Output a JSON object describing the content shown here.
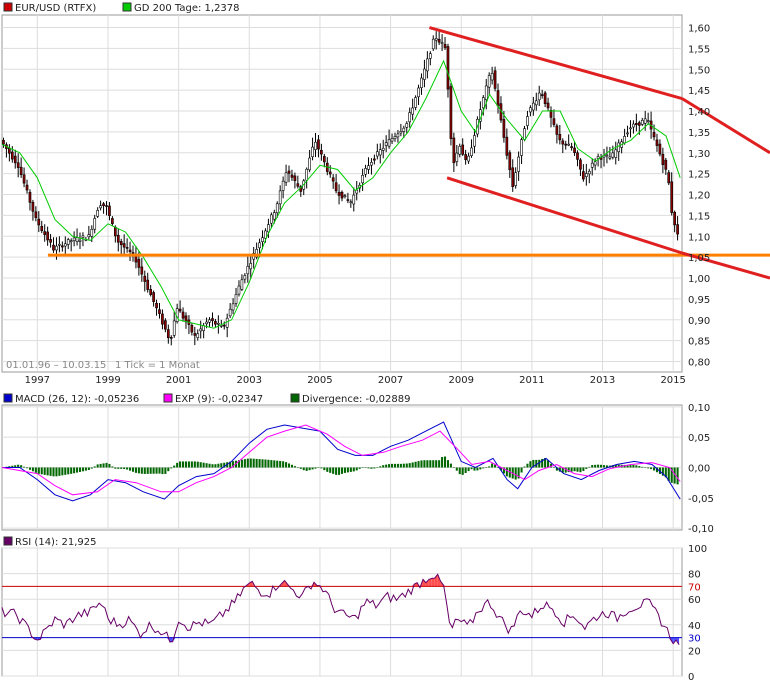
{
  "chart_data": [
    {
      "type": "candlestick",
      "title": "EUR/USD (RTFX)",
      "legend": [
        {
          "label": "EUR/USD (RTFX)",
          "color": "#cc0000"
        },
        {
          "label": "GD 200 Tage: 1,2378",
          "color": "#00cc00"
        }
      ],
      "range_note": "01.01.96 – 10.03.15",
      "tick_note": "1 Tick = 1 Monat",
      "x_ticks": [
        "1997",
        "1999",
        "2001",
        "2003",
        "2005",
        "2007",
        "2009",
        "2011",
        "2013",
        "2015"
      ],
      "x_range": [
        1996.0,
        2015.25
      ],
      "y_ticks": [
        "1,60",
        "1,55",
        "1,50",
        "1,45",
        "1,40",
        "1,35",
        "1,30",
        "1,25",
        "1,20",
        "1,15",
        "1,10",
        "1,05",
        "1,00",
        "0,95",
        "0,90",
        "0,85",
        "0,80"
      ],
      "ylim": [
        0.775,
        1.63
      ],
      "price_path": [
        [
          1996.0,
          1.33
        ],
        [
          1996.5,
          1.27
        ],
        [
          1997.0,
          1.14
        ],
        [
          1997.5,
          1.07
        ],
        [
          1998.0,
          1.09
        ],
        [
          1998.5,
          1.1
        ],
        [
          1998.8,
          1.18
        ],
        [
          1999.0,
          1.17
        ],
        [
          1999.3,
          1.09
        ],
        [
          1999.8,
          1.05
        ],
        [
          2000.3,
          0.95
        ],
        [
          2000.8,
          0.85
        ],
        [
          2001.0,
          0.93
        ],
        [
          2001.5,
          0.86
        ],
        [
          2001.9,
          0.9
        ],
        [
          2002.3,
          0.88
        ],
        [
          2002.8,
          0.99
        ],
        [
          2003.3,
          1.08
        ],
        [
          2003.8,
          1.17
        ],
        [
          2004.1,
          1.26
        ],
        [
          2004.5,
          1.21
        ],
        [
          2004.9,
          1.33
        ],
        [
          2005.5,
          1.21
        ],
        [
          2005.9,
          1.18
        ],
        [
          2006.4,
          1.27
        ],
        [
          2006.9,
          1.32
        ],
        [
          2007.5,
          1.37
        ],
        [
          2007.9,
          1.47
        ],
        [
          2008.3,
          1.58
        ],
        [
          2008.6,
          1.55
        ],
        [
          2008.8,
          1.27
        ],
        [
          2009.0,
          1.32
        ],
        [
          2009.2,
          1.27
        ],
        [
          2009.6,
          1.41
        ],
        [
          2009.9,
          1.5
        ],
        [
          2010.2,
          1.36
        ],
        [
          2010.5,
          1.22
        ],
        [
          2010.9,
          1.39
        ],
        [
          2011.3,
          1.45
        ],
        [
          2011.8,
          1.33
        ],
        [
          2012.2,
          1.31
        ],
        [
          2012.5,
          1.24
        ],
        [
          2012.9,
          1.29
        ],
        [
          2013.3,
          1.29
        ],
        [
          2013.8,
          1.36
        ],
        [
          2014.3,
          1.38
        ],
        [
          2014.7,
          1.29
        ],
        [
          2014.9,
          1.24
        ],
        [
          2015.0,
          1.16
        ],
        [
          2015.2,
          1.09
        ]
      ],
      "sma200_path": [
        [
          1996.0,
          1.32
        ],
        [
          1996.5,
          1.3
        ],
        [
          1997.0,
          1.24
        ],
        [
          1997.5,
          1.14
        ],
        [
          1998.0,
          1.1
        ],
        [
          1998.5,
          1.09
        ],
        [
          1999.0,
          1.13
        ],
        [
          1999.5,
          1.11
        ],
        [
          2000.0,
          1.05
        ],
        [
          2000.5,
          0.98
        ],
        [
          2001.0,
          0.9
        ],
        [
          2001.5,
          0.89
        ],
        [
          2002.0,
          0.88
        ],
        [
          2002.5,
          0.9
        ],
        [
          2003.0,
          0.99
        ],
        [
          2003.5,
          1.1
        ],
        [
          2004.0,
          1.18
        ],
        [
          2004.5,
          1.22
        ],
        [
          2005.0,
          1.27
        ],
        [
          2005.5,
          1.26
        ],
        [
          2006.0,
          1.21
        ],
        [
          2006.5,
          1.24
        ],
        [
          2007.0,
          1.3
        ],
        [
          2007.5,
          1.35
        ],
        [
          2008.0,
          1.43
        ],
        [
          2008.5,
          1.52
        ],
        [
          2009.0,
          1.4
        ],
        [
          2009.4,
          1.35
        ],
        [
          2009.8,
          1.44
        ],
        [
          2010.3,
          1.38
        ],
        [
          2010.8,
          1.33
        ],
        [
          2011.3,
          1.4
        ],
        [
          2011.8,
          1.4
        ],
        [
          2012.3,
          1.31
        ],
        [
          2012.8,
          1.28
        ],
        [
          2013.3,
          1.31
        ],
        [
          2013.8,
          1.33
        ],
        [
          2014.3,
          1.37
        ],
        [
          2014.8,
          1.34
        ],
        [
          2015.2,
          1.24
        ]
      ],
      "channel_upper": [
        [
          2008.1,
          1.6
        ],
        [
          2015.25,
          1.43
        ]
      ],
      "channel_upper_ext": [
        [
          2015.25,
          1.43
        ],
        [
          2017.6,
          1.3
        ]
      ],
      "channel_lower": [
        [
          2008.6,
          1.24
        ],
        [
          2015.25,
          1.06
        ]
      ],
      "channel_lower_ext": [
        [
          2015.25,
          1.06
        ],
        [
          2017.6,
          1.0
        ]
      ],
      "support_line": {
        "value": 1.055,
        "from": 1997.3,
        "to": 2017.6
      },
      "colors": {
        "candle_up": "#ffffff",
        "candle_down": "#8b0000",
        "wick": "#000000",
        "sma": "#00cc00",
        "channel": "#e02020",
        "support": "#ff8000"
      }
    },
    {
      "type": "line",
      "legend": [
        {
          "label": "MACD (26, 12): -0,05236",
          "color": "#0000cc"
        },
        {
          "label": "EXP (9): -0,02347",
          "color": "#ff00ff"
        },
        {
          "label": "Divergence: -0,02889",
          "color": "#006600"
        }
      ],
      "y_ticks": [
        "0,10",
        "0,05",
        "0,00",
        "-0,05",
        "-0,10"
      ],
      "ylim": [
        -0.103,
        0.103
      ],
      "macd_path": [
        [
          1996.0,
          0.0
        ],
        [
          1996.5,
          0.0
        ],
        [
          1997.0,
          -0.02
        ],
        [
          1997.5,
          -0.045
        ],
        [
          1998.0,
          -0.055
        ],
        [
          1998.5,
          -0.045
        ],
        [
          1999.0,
          -0.02
        ],
        [
          1999.5,
          -0.025
        ],
        [
          2000.0,
          -0.04
        ],
        [
          2000.6,
          -0.052
        ],
        [
          2001.0,
          -0.03
        ],
        [
          2001.5,
          -0.015
        ],
        [
          2002.0,
          -0.01
        ],
        [
          2002.5,
          0.01
        ],
        [
          2003.0,
          0.04
        ],
        [
          2003.5,
          0.063
        ],
        [
          2004.0,
          0.07
        ],
        [
          2004.5,
          0.065
        ],
        [
          2005.0,
          0.06
        ],
        [
          2005.5,
          0.03
        ],
        [
          2006.0,
          0.02
        ],
        [
          2006.5,
          0.02
        ],
        [
          2007.0,
          0.035
        ],
        [
          2007.5,
          0.045
        ],
        [
          2008.0,
          0.06
        ],
        [
          2008.5,
          0.075
        ],
        [
          2009.0,
          0.01
        ],
        [
          2009.4,
          0.0
        ],
        [
          2009.9,
          0.015
        ],
        [
          2010.3,
          -0.02
        ],
        [
          2010.6,
          -0.035
        ],
        [
          2011.0,
          0.0
        ],
        [
          2011.4,
          0.015
        ],
        [
          2011.9,
          -0.01
        ],
        [
          2012.4,
          -0.02
        ],
        [
          2012.9,
          -0.005
        ],
        [
          2013.4,
          0.005
        ],
        [
          2013.9,
          0.01
        ],
        [
          2014.4,
          0.005
        ],
        [
          2014.8,
          -0.015
        ],
        [
          2015.2,
          -0.052
        ]
      ],
      "signal_path": [
        [
          1996.0,
          0.0
        ],
        [
          1997.0,
          -0.01
        ],
        [
          1997.5,
          -0.03
        ],
        [
          1998.0,
          -0.045
        ],
        [
          1998.7,
          -0.04
        ],
        [
          1999.2,
          -0.02
        ],
        [
          1999.8,
          -0.025
        ],
        [
          2000.5,
          -0.04
        ],
        [
          2001.0,
          -0.04
        ],
        [
          2001.5,
          -0.025
        ],
        [
          2002.0,
          -0.015
        ],
        [
          2002.5,
          0.0
        ],
        [
          2003.0,
          0.025
        ],
        [
          2003.5,
          0.05
        ],
        [
          2004.0,
          0.06
        ],
        [
          2004.6,
          0.07
        ],
        [
          2005.2,
          0.055
        ],
        [
          2005.7,
          0.035
        ],
        [
          2006.2,
          0.02
        ],
        [
          2006.8,
          0.025
        ],
        [
          2007.3,
          0.035
        ],
        [
          2007.9,
          0.045
        ],
        [
          2008.4,
          0.06
        ],
        [
          2008.9,
          0.03
        ],
        [
          2009.3,
          0.005
        ],
        [
          2009.8,
          0.01
        ],
        [
          2010.3,
          -0.005
        ],
        [
          2010.8,
          -0.02
        ],
        [
          2011.2,
          -0.005
        ],
        [
          2011.7,
          0.005
        ],
        [
          2012.2,
          -0.01
        ],
        [
          2012.7,
          -0.015
        ],
        [
          2013.2,
          -0.002
        ],
        [
          2013.8,
          0.005
        ],
        [
          2014.4,
          0.008
        ],
        [
          2014.9,
          0.0
        ],
        [
          2015.2,
          -0.023
        ]
      ],
      "colors": {
        "macd": "#0000cc",
        "signal": "#ff00ff",
        "divergence": "#006600"
      }
    },
    {
      "type": "line",
      "legend": [
        {
          "label": "RSI (14): 21,925",
          "color": "#660066"
        }
      ],
      "y_ticks": [
        "100",
        "80",
        "70",
        "60",
        "40",
        "30",
        "20",
        "0"
      ],
      "ylim": [
        0,
        100
      ],
      "overbought": 70,
      "oversold": 30,
      "rsi_path": [
        [
          1996.0,
          50
        ],
        [
          1996.4,
          48
        ],
        [
          1996.8,
          35
        ],
        [
          1997.0,
          28
        ],
        [
          1997.2,
          34
        ],
        [
          1997.5,
          44
        ],
        [
          1997.8,
          40
        ],
        [
          1998.1,
          47
        ],
        [
          1998.5,
          50
        ],
        [
          1998.8,
          58
        ],
        [
          1999.0,
          45
        ],
        [
          1999.3,
          40
        ],
        [
          1999.6,
          44
        ],
        [
          1999.9,
          33
        ],
        [
          2000.2,
          40
        ],
        [
          2000.5,
          35
        ],
        [
          2000.8,
          27
        ],
        [
          2001.0,
          45
        ],
        [
          2001.3,
          38
        ],
        [
          2001.6,
          42
        ],
        [
          2001.9,
          40
        ],
        [
          2002.2,
          47
        ],
        [
          2002.6,
          58
        ],
        [
          2002.9,
          70
        ],
        [
          2003.1,
          72
        ],
        [
          2003.3,
          66
        ],
        [
          2003.6,
          65
        ],
        [
          2003.9,
          75
        ],
        [
          2004.1,
          70
        ],
        [
          2004.5,
          62
        ],
        [
          2004.8,
          74
        ],
        [
          2005.1,
          68
        ],
        [
          2005.4,
          53
        ],
        [
          2005.7,
          47
        ],
        [
          2006.0,
          45
        ],
        [
          2006.3,
          58
        ],
        [
          2006.6,
          55
        ],
        [
          2006.9,
          62
        ],
        [
          2007.2,
          60
        ],
        [
          2007.5,
          66
        ],
        [
          2007.8,
          72
        ],
        [
          2008.2,
          80
        ],
        [
          2008.5,
          70
        ],
        [
          2008.7,
          35
        ],
        [
          2008.9,
          44
        ],
        [
          2009.2,
          38
        ],
        [
          2009.5,
          52
        ],
        [
          2009.8,
          58
        ],
        [
          2010.1,
          45
        ],
        [
          2010.4,
          35
        ],
        [
          2010.7,
          52
        ],
        [
          2011.0,
          47
        ],
        [
          2011.3,
          56
        ],
        [
          2011.6,
          53
        ],
        [
          2011.9,
          42
        ],
        [
          2012.2,
          48
        ],
        [
          2012.5,
          38
        ],
        [
          2012.8,
          46
        ],
        [
          2013.1,
          50
        ],
        [
          2013.4,
          45
        ],
        [
          2013.7,
          52
        ],
        [
          2014.0,
          55
        ],
        [
          2014.3,
          57
        ],
        [
          2014.6,
          46
        ],
        [
          2014.9,
          32
        ],
        [
          2015.2,
          22
        ]
      ],
      "colors": {
        "rsi": "#660066",
        "overbought": "#cc0000",
        "oversold": "#0000cc"
      }
    }
  ]
}
